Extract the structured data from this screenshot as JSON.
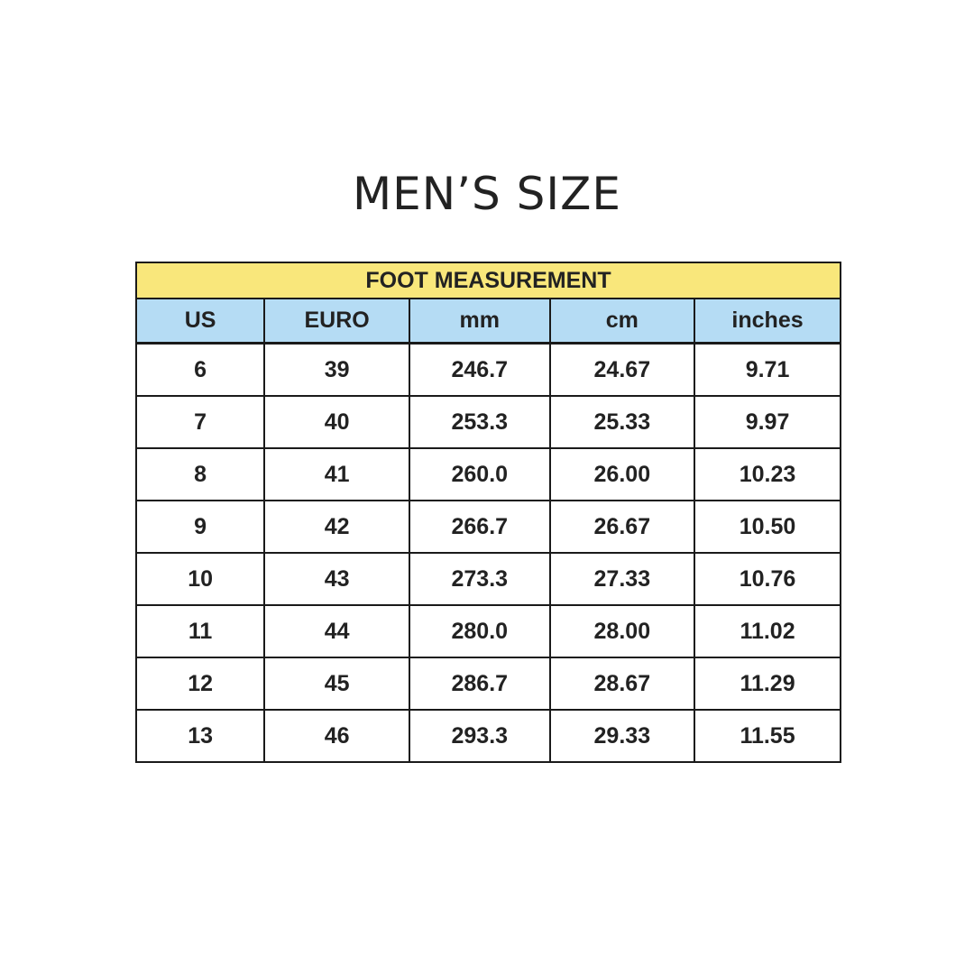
{
  "title": "MEN’S SIZE",
  "table": {
    "caption": "FOOT MEASUREMENT",
    "headers": [
      "US",
      "EURO",
      "mm",
      "cm",
      "inches"
    ],
    "rows": [
      [
        "6",
        "39",
        "246.7",
        "24.67",
        "9.71"
      ],
      [
        "7",
        "40",
        "253.3",
        "25.33",
        "9.97"
      ],
      [
        "8",
        "41",
        "260.0",
        "26.00",
        "10.23"
      ],
      [
        "9",
        "42",
        "266.7",
        "26.67",
        "10.50"
      ],
      [
        "10",
        "43",
        "273.3",
        "27.33",
        "10.76"
      ],
      [
        "11",
        "44",
        "280.0",
        "28.00",
        "11.02"
      ],
      [
        "12",
        "45",
        "286.7",
        "28.67",
        "11.29"
      ],
      [
        "13",
        "46",
        "293.3",
        "29.33",
        "11.55"
      ]
    ]
  },
  "colors": {
    "caption_bg": "#f9e77b",
    "header_bg": "#b5dcf4",
    "text": "#222222"
  }
}
